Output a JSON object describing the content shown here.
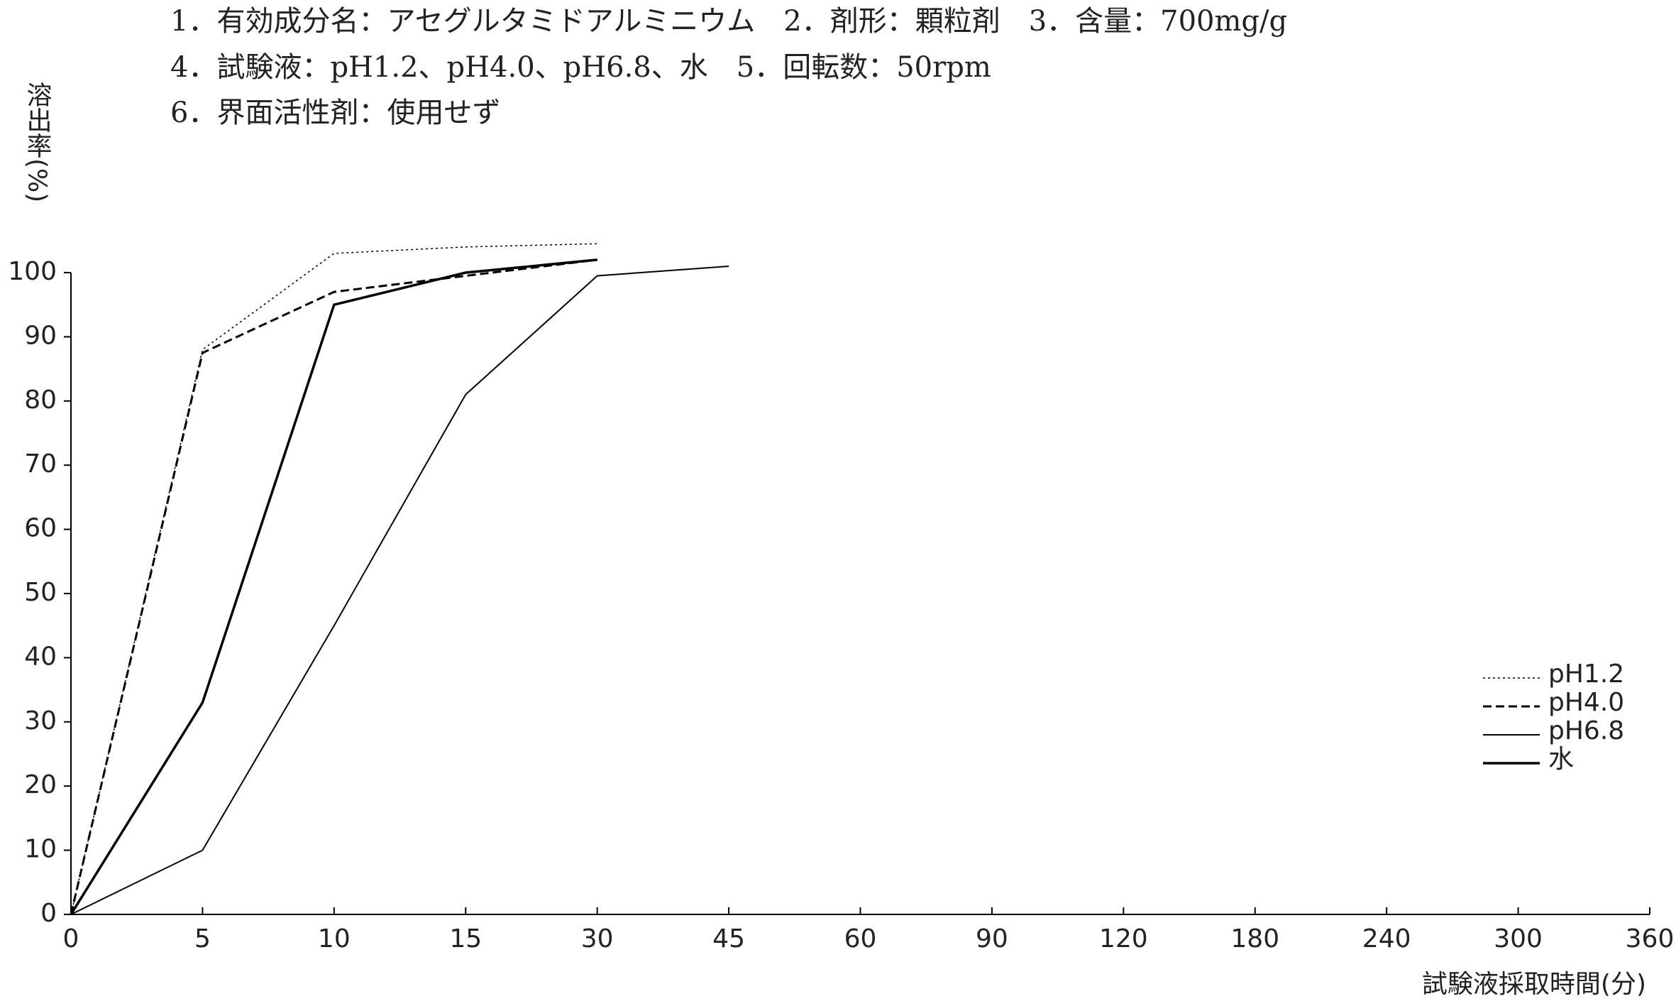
{
  "chart_data": {
    "type": "line",
    "notes": [
      "1．有効成分名：アセグルタミドアルミニウム　2．剤形：顆粒剤　3．含量：700mg/g",
      "4．試験液：pH1.2、pH4.0、pH6.8、水　5．回転数：50rpm",
      "6．界面活性剤：使用せず"
    ],
    "y_label": "溶出率(%)",
    "x_label": "試験液採取時間(分)",
    "categories": [
      "0",
      "5",
      "10",
      "15",
      "30",
      "45",
      "60",
      "90",
      "120",
      "180",
      "240",
      "300",
      "360"
    ],
    "series": [
      {
        "name": "pH1.2",
        "color": "#000000",
        "dash": "3,4",
        "width": 1.5,
        "values": [
          0,
          88,
          103,
          104,
          104.5,
          null,
          null,
          null,
          null,
          null,
          null,
          null,
          null
        ]
      },
      {
        "name": "pH4.0",
        "color": "#000000",
        "dash": "12,6",
        "width": 3,
        "values": [
          0,
          87.5,
          97,
          99.5,
          102,
          null,
          null,
          null,
          null,
          null,
          null,
          null,
          null
        ]
      },
      {
        "name": "pH6.8",
        "color": "#000000",
        "dash": "none",
        "width": 2,
        "values": [
          0,
          10,
          45,
          81,
          99.5,
          101,
          null,
          null,
          null,
          null,
          null,
          null,
          null
        ]
      },
      {
        "name": "水",
        "color": "#000000",
        "dash": "none",
        "width": 3.5,
        "values": [
          0,
          33,
          95,
          100,
          102,
          null,
          null,
          null,
          null,
          null,
          null,
          null,
          null
        ]
      }
    ],
    "ylim": [
      0,
      100
    ],
    "yticks": [
      0,
      10,
      20,
      30,
      40,
      50,
      60,
      70,
      80,
      90,
      100
    ],
    "grid": false,
    "legend": "right"
  }
}
